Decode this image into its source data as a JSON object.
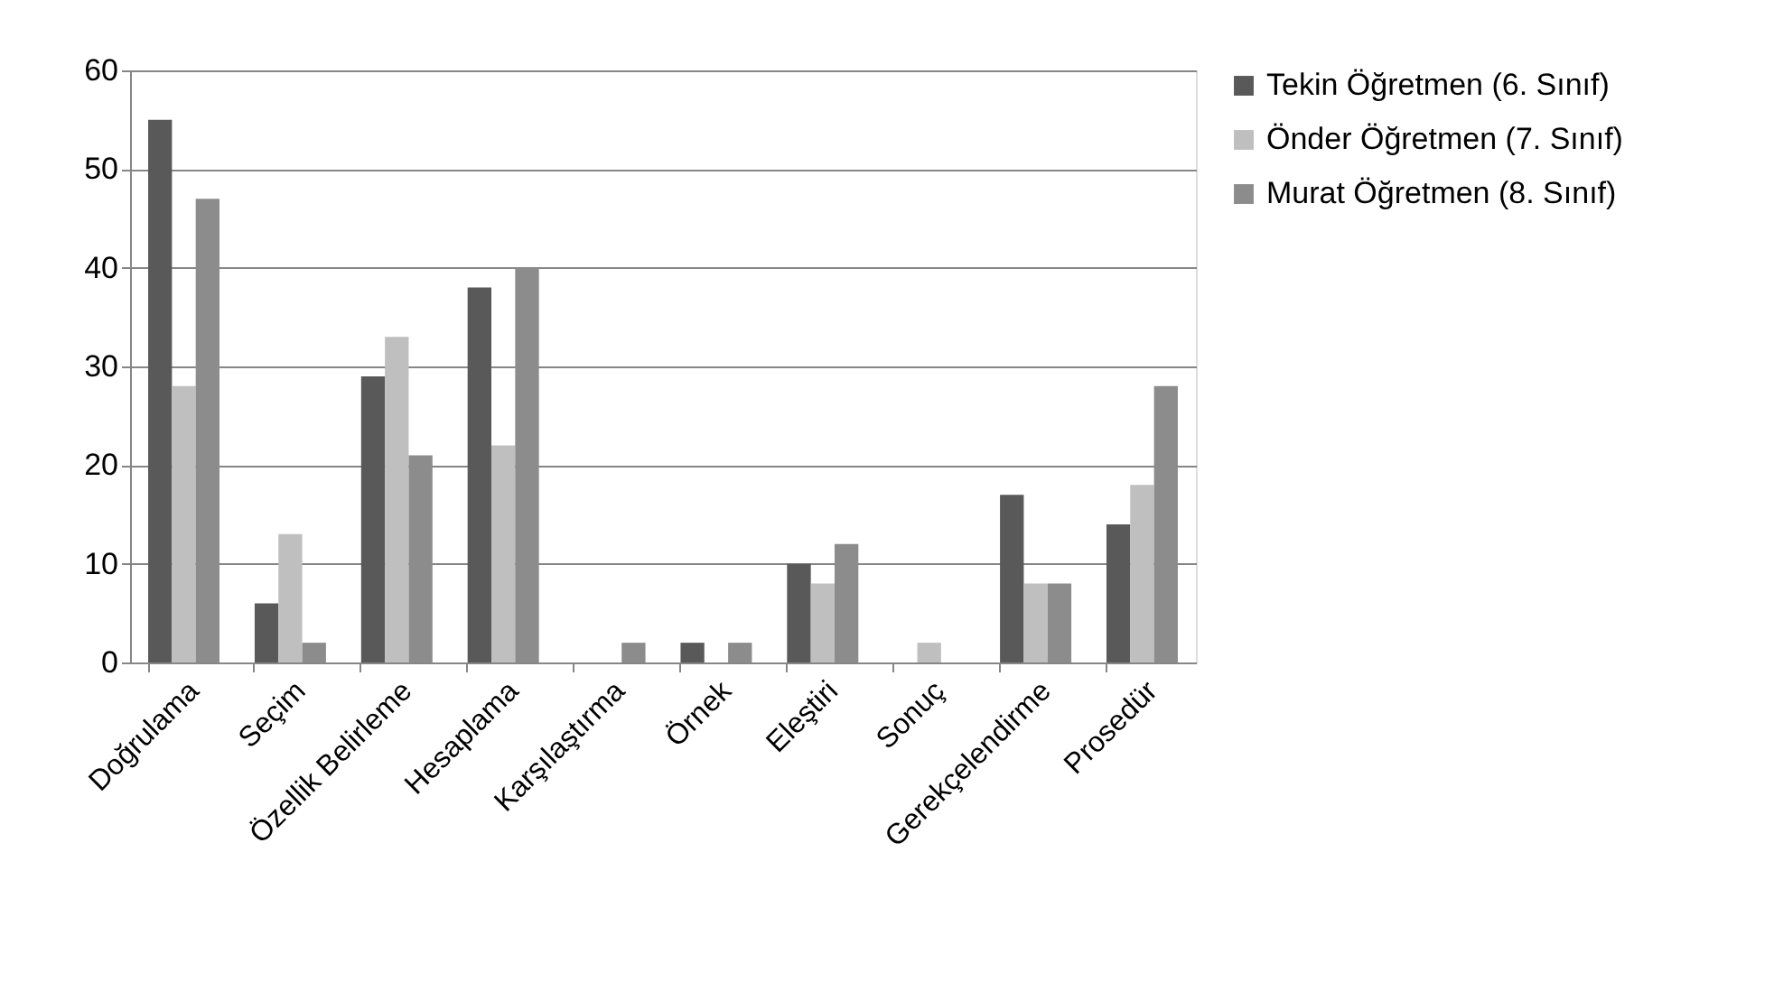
{
  "chart_data": {
    "type": "bar",
    "categories": [
      "Doğrulama",
      "Seçim",
      "Özellik Belirleme",
      "Hesaplama",
      "Karşılaştırma",
      "Örnek",
      "Eleştiri",
      "Sonuç",
      "Gerekçelendirme",
      "Prosedür"
    ],
    "series": [
      {
        "name": "Tekin Öğretmen (6. Sınıf)",
        "color": "#595959",
        "values": [
          55,
          6,
          29,
          38,
          0,
          2,
          10,
          0,
          17,
          14
        ]
      },
      {
        "name": "Önder Öğretmen (7. Sınıf)",
        "color": "#bfbfbf",
        "values": [
          28,
          13,
          33,
          22,
          0,
          0,
          8,
          2,
          8,
          18
        ]
      },
      {
        "name": "Murat Öğretmen (8. Sınıf)",
        "color": "#8c8c8c",
        "values": [
          47,
          2,
          21,
          40,
          2,
          2,
          12,
          0,
          8,
          28
        ]
      }
    ],
    "ylim": [
      0,
      60
    ],
    "yticks": [
      0,
      10,
      20,
      30,
      40,
      50,
      60
    ],
    "grid": "y",
    "legend": "right"
  }
}
